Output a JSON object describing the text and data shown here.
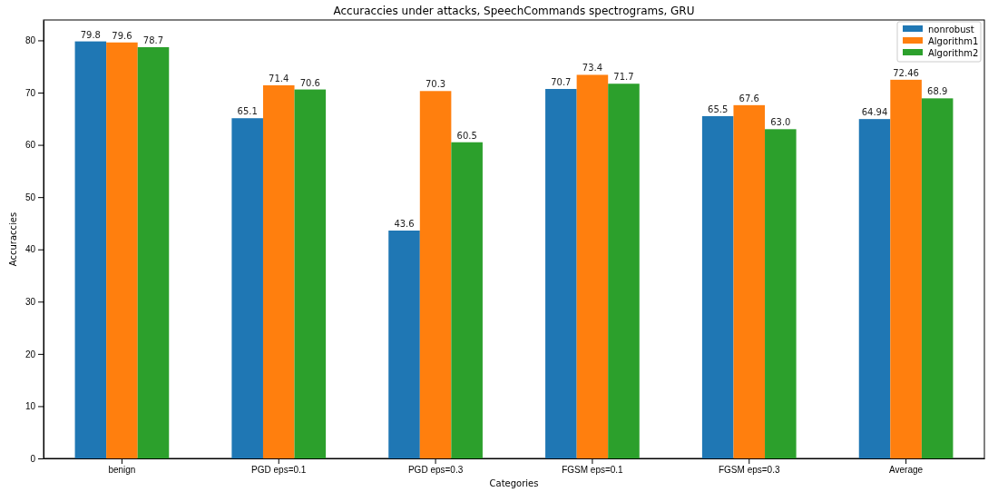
{
  "chart_data": {
    "type": "bar",
    "title": "Accuraccies under attacks, SpeechCommands spectrograms, GRU",
    "xlabel": "Categories",
    "ylabel": "Accuraccies",
    "categories": [
      "benign",
      "PGD eps=0.1",
      "PGD eps=0.3",
      "FGSM eps=0.1",
      "FGSM eps=0.3",
      "Average"
    ],
    "series": [
      {
        "name": "nonrobust",
        "color": "#1f77b4",
        "values": [
          79.8,
          65.1,
          43.6,
          70.7,
          65.5,
          64.94
        ],
        "value_labels": [
          "79.8",
          "65.1",
          "43.6",
          "70.7",
          "65.5",
          "64.94"
        ]
      },
      {
        "name": "Algorithm1",
        "color": "#ff7f0e",
        "values": [
          79.6,
          71.4,
          70.3,
          73.4,
          67.6,
          72.46
        ],
        "value_labels": [
          "79.6",
          "71.4",
          "70.3",
          "73.4",
          "67.6",
          "72.46"
        ]
      },
      {
        "name": "Algorithm2",
        "color": "#2ca02c",
        "values": [
          78.7,
          70.6,
          60.5,
          71.7,
          63.0,
          68.9
        ],
        "value_labels": [
          "78.7",
          "70.6",
          "60.5",
          "71.7",
          "63.0",
          "68.9"
        ]
      }
    ],
    "ylim": [
      0,
      83.9
    ],
    "yticks": [
      0,
      10,
      20,
      30,
      40,
      50,
      60,
      70,
      80
    ],
    "grid": false,
    "legend": "top right"
  }
}
